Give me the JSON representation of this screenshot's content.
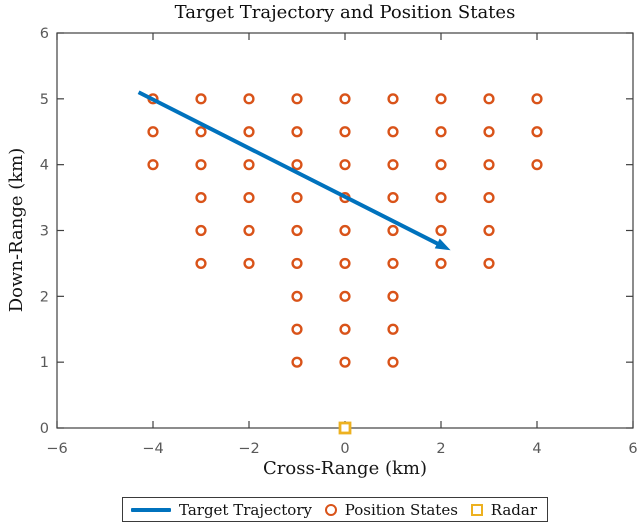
{
  "chart_data": {
    "type": "scatter",
    "title": "Target Trajectory and Position States",
    "xlabel": "Cross-Range (km)",
    "ylabel": "Down-Range (km)",
    "xlim": [
      -6,
      6
    ],
    "ylim": [
      0,
      6
    ],
    "xticks": [
      -6,
      -4,
      -2,
      0,
      2,
      4,
      6
    ],
    "yticks": [
      0,
      1,
      2,
      3,
      4,
      5,
      6
    ],
    "grid": false,
    "box": true,
    "axis_color": "#3f3f3f",
    "tick_label_color": "#595959",
    "legend": {
      "position": "bottom-outside",
      "entries": [
        "Target Trajectory",
        "Position States",
        "Radar"
      ]
    },
    "series": [
      {
        "name": "Target Trajectory",
        "type": "line-arrow",
        "color": "#0072BD",
        "line_width": 4,
        "points": [
          [
            -4.3,
            5.1
          ],
          [
            2.2,
            2.7
          ]
        ]
      },
      {
        "name": "Position States",
        "type": "scatter",
        "marker": "open-circle",
        "color": "#D95319",
        "points": [
          [
            -4,
            5
          ],
          [
            -3,
            5
          ],
          [
            -2,
            5
          ],
          [
            -1,
            5
          ],
          [
            0,
            5
          ],
          [
            1,
            5
          ],
          [
            2,
            5
          ],
          [
            3,
            5
          ],
          [
            4,
            5
          ],
          [
            -4,
            4.5
          ],
          [
            -3,
            4.5
          ],
          [
            -2,
            4.5
          ],
          [
            -1,
            4.5
          ],
          [
            0,
            4.5
          ],
          [
            1,
            4.5
          ],
          [
            2,
            4.5
          ],
          [
            3,
            4.5
          ],
          [
            4,
            4.5
          ],
          [
            -4,
            4
          ],
          [
            -3,
            4
          ],
          [
            -2,
            4
          ],
          [
            -1,
            4
          ],
          [
            0,
            4
          ],
          [
            1,
            4
          ],
          [
            2,
            4
          ],
          [
            3,
            4
          ],
          [
            4,
            4
          ],
          [
            -3,
            3.5
          ],
          [
            -2,
            3.5
          ],
          [
            -1,
            3.5
          ],
          [
            0,
            3.5
          ],
          [
            1,
            3.5
          ],
          [
            2,
            3.5
          ],
          [
            3,
            3.5
          ],
          [
            -3,
            3
          ],
          [
            -2,
            3
          ],
          [
            -1,
            3
          ],
          [
            0,
            3
          ],
          [
            1,
            3
          ],
          [
            2,
            3
          ],
          [
            3,
            3
          ],
          [
            -3,
            2.5
          ],
          [
            -2,
            2.5
          ],
          [
            -1,
            2.5
          ],
          [
            0,
            2.5
          ],
          [
            1,
            2.5
          ],
          [
            2,
            2.5
          ],
          [
            3,
            2.5
          ],
          [
            -1,
            2
          ],
          [
            0,
            2
          ],
          [
            1,
            2
          ],
          [
            -1,
            1.5
          ],
          [
            0,
            1.5
          ],
          [
            1,
            1.5
          ],
          [
            -1,
            1
          ],
          [
            0,
            1
          ],
          [
            1,
            1
          ]
        ]
      },
      {
        "name": "Radar",
        "type": "scatter",
        "marker": "open-square",
        "color": "#EDB120",
        "points": [
          [
            0,
            0
          ]
        ]
      }
    ]
  }
}
